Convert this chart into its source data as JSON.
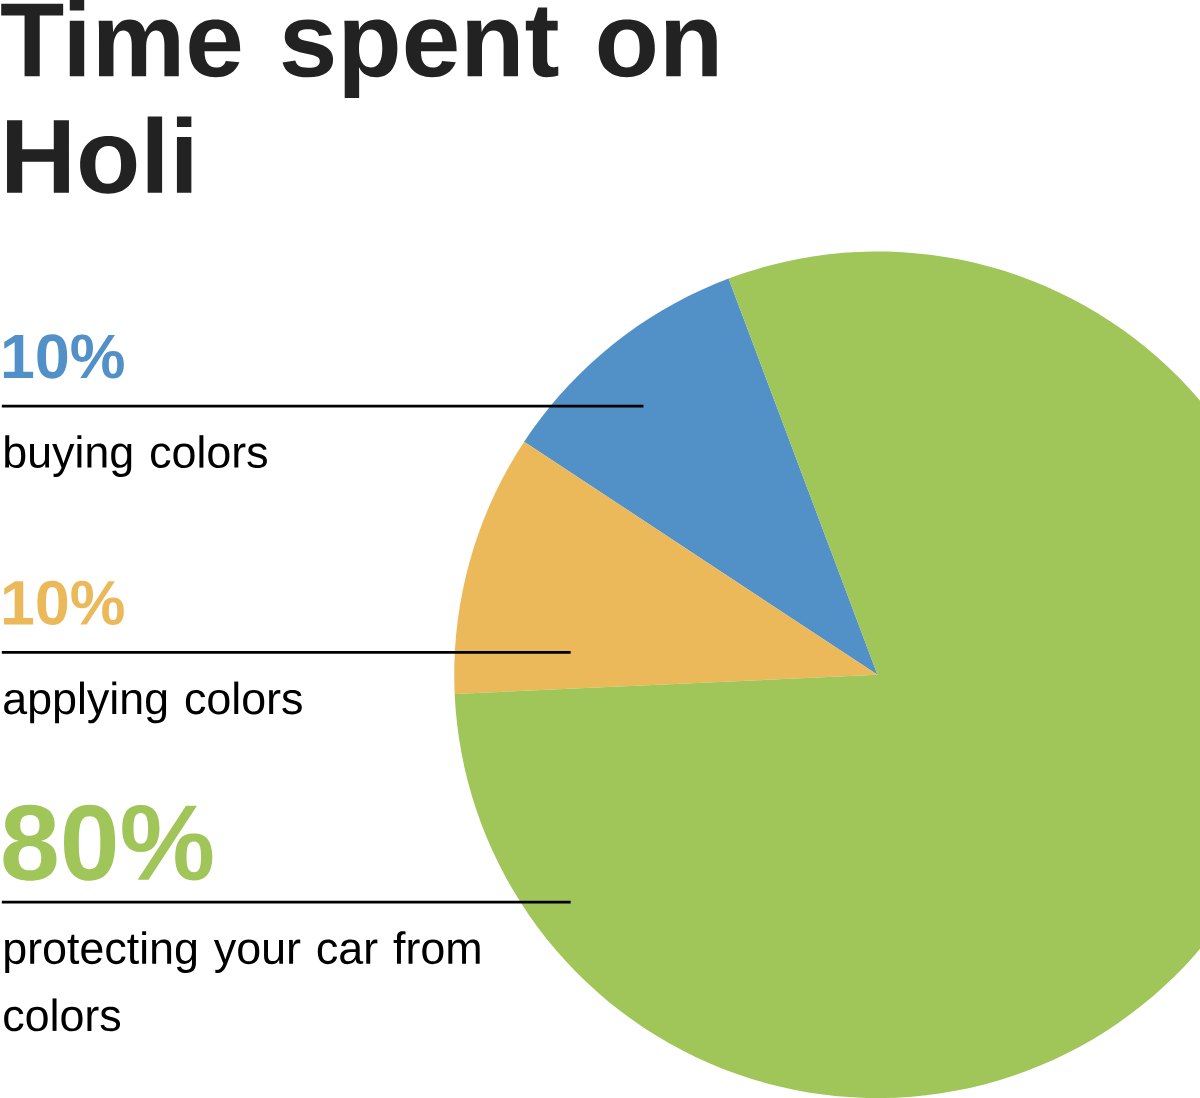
{
  "chart_data": {
    "type": "pie",
    "title": "Time spent on Holi",
    "categories": [
      "buying colors",
      "applying colors",
      "protecting your car from colors"
    ],
    "values": [
      10,
      10,
      80
    ],
    "colors": [
      "#5290c8",
      "#ebb95a",
      "#a0c558"
    ],
    "value_labels": [
      "10%",
      "10%",
      "80%"
    ]
  }
}
